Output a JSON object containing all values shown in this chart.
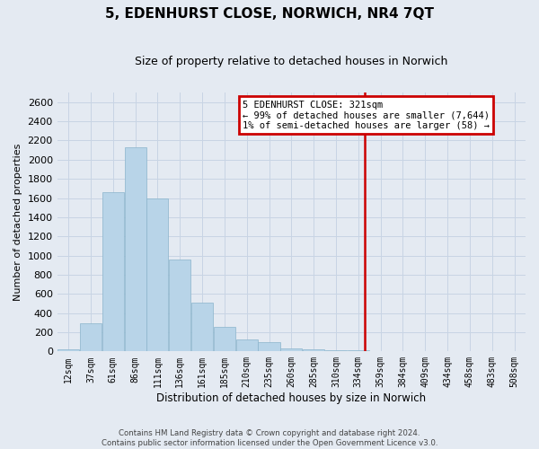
{
  "title": "5, EDENHURST CLOSE, NORWICH, NR4 7QT",
  "subtitle": "Size of property relative to detached houses in Norwich",
  "xlabel": "Distribution of detached houses by size in Norwich",
  "ylabel": "Number of detached properties",
  "bin_labels": [
    "12sqm",
    "37sqm",
    "61sqm",
    "86sqm",
    "111sqm",
    "136sqm",
    "161sqm",
    "185sqm",
    "210sqm",
    "235sqm",
    "260sqm",
    "285sqm",
    "310sqm",
    "334sqm",
    "359sqm",
    "384sqm",
    "409sqm",
    "434sqm",
    "458sqm",
    "483sqm",
    "508sqm"
  ],
  "bar_heights": [
    20,
    295,
    1665,
    2130,
    1600,
    960,
    505,
    255,
    125,
    95,
    35,
    25,
    10,
    10,
    5,
    5,
    3,
    2,
    2,
    2,
    2
  ],
  "bar_color": "#b8d4e8",
  "bar_edge_color": "#8ab4cc",
  "grid_color": "#c8d4e4",
  "background_color": "#e4eaf2",
  "vline_color": "#cc0000",
  "annotation_title": "5 EDENHURST CLOSE: 321sqm",
  "annotation_line1": "← 99% of detached houses are smaller (7,644)",
  "annotation_line2": "1% of semi-detached houses are larger (58) →",
  "annotation_box_color": "#ffffff",
  "annotation_box_edge_color": "#cc0000",
  "ylim": [
    0,
    2700
  ],
  "yticks": [
    0,
    200,
    400,
    600,
    800,
    1000,
    1200,
    1400,
    1600,
    1800,
    2000,
    2200,
    2400,
    2600
  ],
  "footer1": "Contains HM Land Registry data © Crown copyright and database right 2024.",
  "footer2": "Contains public sector information licensed under the Open Government Licence v3.0.",
  "vline_position": 13.3
}
